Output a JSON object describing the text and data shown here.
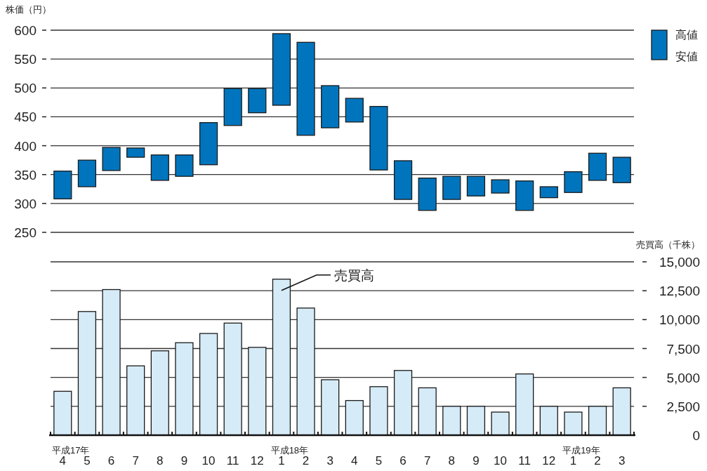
{
  "chart_data": [
    {
      "type": "bar",
      "ylabel": "株価（円）",
      "categories": [
        null,
        null,
        null,
        null,
        null,
        null,
        null,
        null,
        null,
        null,
        null,
        null,
        null,
        null,
        null,
        null,
        null,
        null,
        null,
        null,
        null,
        null,
        null,
        null
      ],
      "base": [
        308,
        329,
        357,
        380,
        340,
        347,
        367,
        435,
        457,
        470,
        418,
        431,
        441,
        358,
        307,
        288,
        307,
        313,
        318,
        288,
        310,
        319,
        340,
        336
      ],
      "values": [
        48,
        46,
        40,
        16,
        44,
        37,
        73,
        64,
        42,
        124,
        161,
        73,
        41,
        110,
        67,
        56,
        40,
        34,
        23,
        51,
        19,
        36,
        47,
        44
      ],
      "color": "#0075be",
      "ylim": [
        250,
        600
      ],
      "yticks": [
        250,
        300,
        350,
        400,
        450,
        500,
        550,
        600
      ],
      "grid": "y",
      "tick_labels": "y",
      "annotations": [
        "高値",
        "安値"
      ]
    },
    {
      "type": "bar",
      "y2label": "売買高（千株）",
      "categories": [
        "平成17年\n4",
        "5",
        "6",
        "7",
        "8",
        "9",
        "10",
        "11",
        "12",
        "平成18年\n1",
        "2",
        "3",
        "4",
        "5",
        "6",
        "7",
        "8",
        "9",
        "10",
        "11",
        "12",
        "平成19年\n1",
        "2",
        "3"
      ],
      "series": [
        {
          "axis": "y2",
          "color": "#d6ebf8",
          "values": [
            3800,
            10700,
            12600,
            6000,
            7300,
            8000,
            8800,
            9700,
            7600,
            13500,
            11000,
            4800,
            3000,
            4200,
            5600,
            4100,
            2500,
            2500,
            2000,
            5300,
            2500,
            2000,
            2500,
            4100
          ]
        }
      ],
      "y2lim": [
        0,
        15000
      ],
      "y2ticks": [
        0,
        {
          "value": 2500,
          "label": "2,500"
        },
        {
          "value": 5000,
          "label": "5,000"
        },
        {
          "value": 7500,
          "label": "7,500"
        },
        {
          "value": 10000,
          "label": "10,000"
        },
        {
          "value": 12500,
          "label": "12,500"
        },
        {
          "value": 15000,
          "label": "15,000"
        }
      ],
      "grid": "y",
      "annotations": [
        "売買高"
      ]
    }
  ]
}
